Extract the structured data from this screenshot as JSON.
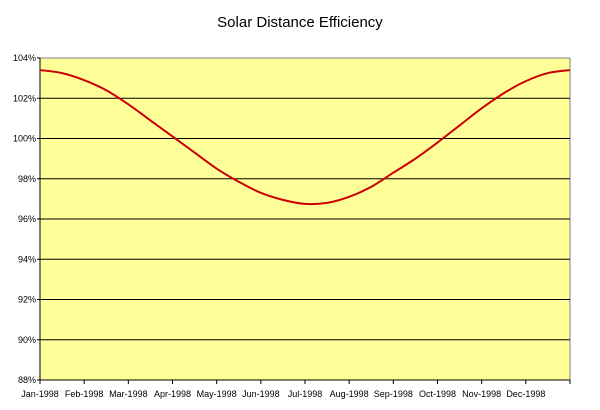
{
  "chart_data": {
    "type": "line",
    "title": "Solar Distance Efficiency",
    "xlabel": "",
    "ylabel": "",
    "ylim": [
      88,
      104
    ],
    "yticks": [
      "88%",
      "90%",
      "92%",
      "94%",
      "96%",
      "98%",
      "100%",
      "102%",
      "104%"
    ],
    "ytick_values": [
      88,
      90,
      92,
      94,
      96,
      98,
      100,
      102,
      104
    ],
    "x_range": [
      0,
      12
    ],
    "categories": [
      "Jan-1998",
      "Feb-1998",
      "Mar-1998",
      "Apr-1998",
      "May-1998",
      "Jun-1998",
      "Jul-1998",
      "Aug-1998",
      "Sep-1998",
      "Oct-1998",
      "Nov-1998",
      "Dec-1998"
    ],
    "grid": true,
    "series": [
      {
        "name": "Solar Distance Efficiency",
        "color": "#cc0000",
        "x": [
          0,
          0.5,
          1,
          1.5,
          2,
          2.5,
          3,
          3.5,
          4,
          4.5,
          5,
          5.5,
          6,
          6.5,
          7,
          7.5,
          8,
          8.5,
          9,
          9.5,
          10,
          10.5,
          11,
          11.5,
          12
        ],
        "values": [
          103.4,
          103.25,
          102.9,
          102.4,
          101.7,
          100.9,
          100.1,
          99.3,
          98.5,
          97.85,
          97.3,
          96.95,
          96.75,
          96.8,
          97.1,
          97.6,
          98.3,
          99.0,
          99.8,
          100.65,
          101.5,
          102.25,
          102.85,
          103.25,
          103.4
        ]
      }
    ],
    "plot_background": "#ffff99",
    "plot_border": "#808080",
    "gridline_color": "#000000"
  }
}
